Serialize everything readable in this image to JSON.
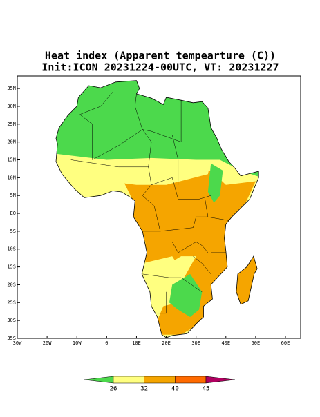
{
  "map": {
    "title": "Heat index (Apparent tempearture (C))",
    "subtitle": "Init:ICON 20231224-00UTC, VT: 20231227",
    "xlim": [
      -30,
      65.1
    ],
    "ylim": [
      -35,
      38.5
    ],
    "xticks": [
      {
        "value": -30,
        "label": "30W"
      },
      {
        "value": -20,
        "label": "20W"
      },
      {
        "value": -10,
        "label": "10W"
      },
      0,
      {
        "value": 10,
        "label": "10E"
      },
      {
        "value": 20,
        "label": "20E"
      },
      {
        "value": 30,
        "label": "30E"
      },
      {
        "value": 40,
        "label": "40E"
      },
      {
        "value": 50,
        "label": "50E"
      },
      {
        "value": 60,
        "label": "60E"
      }
    ],
    "yticks": [
      {
        "value": 35,
        "label": "35N"
      },
      {
        "value": 30,
        "label": "30N"
      },
      {
        "value": 25,
        "label": "25N"
      },
      {
        "value": 20,
        "label": "20N"
      },
      {
        "value": 15,
        "label": "15N"
      },
      {
        "value": 10,
        "label": "10N"
      },
      {
        "value": 5,
        "label": "5N"
      },
      {
        "value": 0,
        "label": "EQ"
      },
      {
        "value": -5,
        "label": "5S"
      },
      {
        "value": -10,
        "label": "10S"
      },
      {
        "value": -15,
        "label": "15S"
      },
      {
        "value": -20,
        "label": "20S"
      },
      {
        "value": -25,
        "label": "25S"
      },
      {
        "value": -30,
        "label": "30S"
      },
      {
        "value": -35,
        "label": "35S"
      }
    ],
    "colorbar": {
      "levels": [
        26,
        32,
        40,
        45
      ],
      "colors": [
        "#4cd94c",
        "#ffff80",
        "#f5a500",
        "#ff6a00",
        "#b00060"
      ]
    }
  }
}
